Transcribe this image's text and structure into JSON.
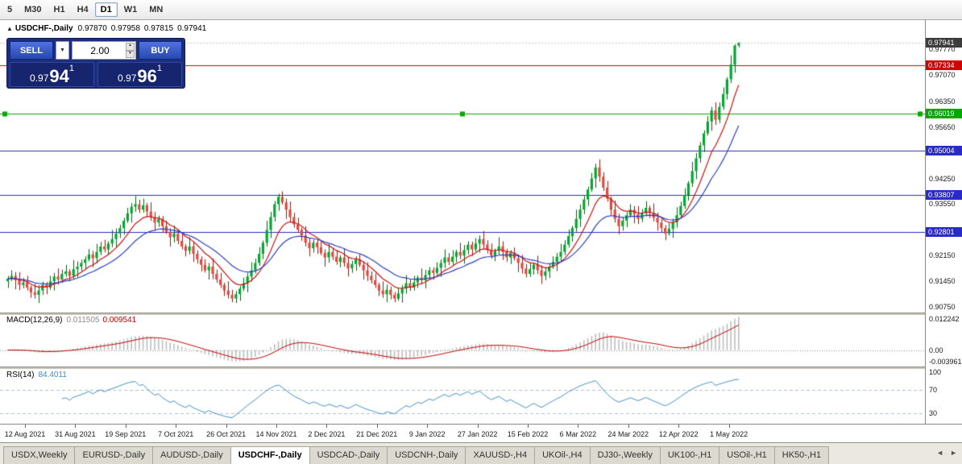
{
  "toolbar": {
    "timeframes": [
      "5",
      "M30",
      "H1",
      "H4",
      "D1",
      "W1",
      "MN"
    ],
    "active_timeframe": "D1"
  },
  "icons": {
    "collapse": "▲",
    "dropdown": "▼",
    "spin_up": "▲",
    "spin_down": "▼",
    "tab_prev": "◄",
    "tab_next": "►"
  },
  "chart_header": {
    "symbol": "USDCHF-,Daily",
    "open": "0.97870",
    "high": "0.97958",
    "low": "0.97815",
    "close": "0.97941"
  },
  "trade_panel": {
    "sell_label": "SELL",
    "buy_label": "BUY",
    "volume": "2.00",
    "sell_price": {
      "prefix": "0.97",
      "big": "94",
      "sup": "1"
    },
    "buy_price": {
      "prefix": "0.97",
      "big": "96",
      "sup": "1"
    }
  },
  "price_axis": {
    "labels": [
      {
        "text": "0.97770",
        "value": 0.9777
      },
      {
        "text": "0.97070",
        "value": 0.9707
      },
      {
        "text": "0.96350",
        "value": 0.9635
      },
      {
        "text": "0.95650",
        "value": 0.9565
      },
      {
        "text": "0.94250",
        "value": 0.9425
      },
      {
        "text": "0.93550",
        "value": 0.9355
      },
      {
        "text": "0.92150",
        "value": 0.9215
      },
      {
        "text": "0.91450",
        "value": 0.9145
      },
      {
        "text": "0.90750",
        "value": 0.9075
      }
    ],
    "tags": [
      {
        "text": "0.97941",
        "value": 0.97941,
        "bg": "#3c3c3c"
      },
      {
        "text": "0.97334",
        "value": 0.97334,
        "bg": "#d60000"
      },
      {
        "text": "0.96019",
        "value": 0.96019,
        "bg": "#00a800"
      },
      {
        "text": "0.95004",
        "value": 0.95004,
        "bg": "#2a2ac8"
      },
      {
        "text": "0.93807",
        "value": 0.93807,
        "bg": "#2a2ac8"
      },
      {
        "text": "0.92801",
        "value": 0.92801,
        "bg": "#2a2ac8"
      }
    ]
  },
  "macd_panel": {
    "title": "MACD(12,26,9)",
    "value_main": "0.011505",
    "value_signal": "0.009541",
    "axis_labels": [
      "0.012242",
      "0.00",
      "-0.003961"
    ],
    "histogram_color": "#bdbdbd",
    "signal_color": "#c00000",
    "params": {
      "fast": 12,
      "slow": 26,
      "signal": 9
    }
  },
  "rsi_panel": {
    "title": "RSI(14)",
    "value": "84.4011",
    "period": 14,
    "axis_labels": [
      "100",
      "70",
      "30"
    ],
    "levels": [
      70,
      30
    ],
    "line_color": "#3f8fc4"
  },
  "tab_bar": {
    "tabs": [
      "USDX,Weekly",
      "EURUSD-,Daily",
      "AUDUSD-,Daily",
      "USDCHF-,Daily",
      "USDCAD-,Daily",
      "USDCNH-,Daily",
      "XAUUSD-,H4",
      "UKOil-,H4",
      "DJ30-,Weekly",
      "UK100-,H1",
      "USOil-,H1",
      "HK50-,H1"
    ],
    "active": "USDCHF-,Daily"
  },
  "chart_data": {
    "type": "candlestick",
    "symbol": "USDCHF",
    "timeframe": "Daily",
    "ylim": [
      0.906,
      0.9856
    ],
    "current_price": 0.97941,
    "up_color": "#00a830",
    "down_color": "#e2483c",
    "x_labels": [
      "12 Aug 2021",
      "31 Aug 2021",
      "19 Sep 2021",
      "7 Oct 2021",
      "26 Oct 2021",
      "14 Nov 2021",
      "2 Dec 2021",
      "21 Dec 2021",
      "9 Jan 2022",
      "27 Jan 2022",
      "15 Feb 2022",
      "6 Mar 2022",
      "24 Mar 2022",
      "12 Apr 2022",
      "1 May 2022"
    ],
    "hlines": [
      {
        "price": 0.97334,
        "color": "#d60000"
      },
      {
        "price": 0.96019,
        "color": "#00a800",
        "selected": true
      },
      {
        "price": 0.95004,
        "color": "#2a2ac8"
      },
      {
        "price": 0.93807,
        "color": "#2a2ac8"
      },
      {
        "price": 0.92801,
        "color": "#2a2ac8"
      }
    ],
    "moving_averages": [
      {
        "period": 9,
        "type": "ema",
        "color": "#cc1111"
      },
      {
        "period": 20,
        "type": "ema",
        "color": "#2b3fc4"
      }
    ],
    "candles": [
      [
        0.9145,
        0.916,
        0.9127,
        0.9152
      ],
      [
        0.9152,
        0.9175,
        0.9146,
        0.916
      ],
      [
        0.916,
        0.917,
        0.9123,
        0.9148
      ],
      [
        0.9148,
        0.917,
        0.9121,
        0.9135
      ],
      [
        0.9135,
        0.9154,
        0.9126,
        0.9142
      ],
      [
        0.9142,
        0.916,
        0.912,
        0.9128
      ],
      [
        0.9128,
        0.9134,
        0.91,
        0.9115
      ],
      [
        0.9115,
        0.914,
        0.9098,
        0.9108
      ],
      [
        0.9108,
        0.9134,
        0.9086,
        0.912
      ],
      [
        0.912,
        0.9144,
        0.9108,
        0.9135
      ],
      [
        0.9135,
        0.9143,
        0.911,
        0.9128
      ],
      [
        0.9128,
        0.916,
        0.9122,
        0.9145
      ],
      [
        0.9145,
        0.9168,
        0.912,
        0.9158
      ],
      [
        0.9158,
        0.918,
        0.9136,
        0.915
      ],
      [
        0.915,
        0.9177,
        0.9141,
        0.9165
      ],
      [
        0.9165,
        0.919,
        0.9157,
        0.9172
      ],
      [
        0.9172,
        0.9178,
        0.9145,
        0.916
      ],
      [
        0.916,
        0.9203,
        0.915,
        0.9178
      ],
      [
        0.9178,
        0.9199,
        0.9156,
        0.9185
      ],
      [
        0.9185,
        0.9204,
        0.9173,
        0.9195
      ],
      [
        0.9195,
        0.9213,
        0.9177,
        0.9205
      ],
      [
        0.9205,
        0.9233,
        0.9199,
        0.9218
      ],
      [
        0.9218,
        0.9228,
        0.9183,
        0.9208
      ],
      [
        0.9208,
        0.9247,
        0.9194,
        0.9225
      ],
      [
        0.9225,
        0.9252,
        0.9216,
        0.924
      ],
      [
        0.924,
        0.9258,
        0.9224,
        0.9232
      ],
      [
        0.9232,
        0.9254,
        0.9217,
        0.9248
      ],
      [
        0.9248,
        0.9285,
        0.9238,
        0.926
      ],
      [
        0.926,
        0.9289,
        0.9238,
        0.9275
      ],
      [
        0.9275,
        0.9299,
        0.9263,
        0.929
      ],
      [
        0.929,
        0.9318,
        0.9272,
        0.931
      ],
      [
        0.931,
        0.9345,
        0.9304,
        0.933
      ],
      [
        0.933,
        0.9358,
        0.9305,
        0.9348
      ],
      [
        0.9348,
        0.9377,
        0.9334,
        0.9355
      ],
      [
        0.9355,
        0.9367,
        0.9331,
        0.934
      ],
      [
        0.934,
        0.937,
        0.9332,
        0.9352
      ],
      [
        0.9352,
        0.9358,
        0.932,
        0.9335
      ],
      [
        0.9335,
        0.936,
        0.931,
        0.932
      ],
      [
        0.932,
        0.9334,
        0.9283,
        0.9305
      ],
      [
        0.9305,
        0.9324,
        0.9293,
        0.9315
      ],
      [
        0.9315,
        0.9323,
        0.9277,
        0.9295
      ],
      [
        0.9295,
        0.931,
        0.9274,
        0.928
      ],
      [
        0.928,
        0.929,
        0.924,
        0.9265
      ],
      [
        0.9265,
        0.9297,
        0.9251,
        0.9275
      ],
      [
        0.9275,
        0.9287,
        0.9246,
        0.9255
      ],
      [
        0.9255,
        0.9273,
        0.9232,
        0.924
      ],
      [
        0.924,
        0.9246,
        0.9213,
        0.9228
      ],
      [
        0.9228,
        0.9265,
        0.9218,
        0.924
      ],
      [
        0.924,
        0.9254,
        0.9198,
        0.922
      ],
      [
        0.922,
        0.9229,
        0.9193,
        0.9205
      ],
      [
        0.9205,
        0.9213,
        0.9172,
        0.919
      ],
      [
        0.919,
        0.9205,
        0.9169,
        0.9175
      ],
      [
        0.9175,
        0.9195,
        0.915,
        0.9185
      ],
      [
        0.9185,
        0.9207,
        0.9151,
        0.9165
      ],
      [
        0.9165,
        0.9177,
        0.9141,
        0.915
      ],
      [
        0.915,
        0.9168,
        0.9127,
        0.9135
      ],
      [
        0.9135,
        0.9141,
        0.9105,
        0.912
      ],
      [
        0.912,
        0.9145,
        0.9098,
        0.9108
      ],
      [
        0.9108,
        0.9122,
        0.9088,
        0.9098
      ],
      [
        0.9098,
        0.9119,
        0.9086,
        0.911
      ],
      [
        0.911,
        0.9133,
        0.9092,
        0.9125
      ],
      [
        0.9125,
        0.9155,
        0.9119,
        0.914
      ],
      [
        0.914,
        0.9168,
        0.9115,
        0.9158
      ],
      [
        0.9158,
        0.9197,
        0.9144,
        0.9175
      ],
      [
        0.9175,
        0.9207,
        0.9166,
        0.9195
      ],
      [
        0.9195,
        0.9238,
        0.9187,
        0.922
      ],
      [
        0.922,
        0.9256,
        0.9205,
        0.925
      ],
      [
        0.925,
        0.931,
        0.924,
        0.9285
      ],
      [
        0.9285,
        0.9334,
        0.9263,
        0.932
      ],
      [
        0.932,
        0.9364,
        0.9308,
        0.9355
      ],
      [
        0.9355,
        0.9383,
        0.9337,
        0.9375
      ],
      [
        0.9375,
        0.939,
        0.9354,
        0.936
      ],
      [
        0.936,
        0.937,
        0.9315,
        0.934
      ],
      [
        0.934,
        0.9362,
        0.9306,
        0.932
      ],
      [
        0.932,
        0.9332,
        0.9291,
        0.93
      ],
      [
        0.93,
        0.9318,
        0.9277,
        0.9285
      ],
      [
        0.9285,
        0.9291,
        0.9255,
        0.927
      ],
      [
        0.927,
        0.9295,
        0.924,
        0.925
      ],
      [
        0.925,
        0.9264,
        0.9213,
        0.9235
      ],
      [
        0.9235,
        0.9259,
        0.9223,
        0.925
      ],
      [
        0.925,
        0.9258,
        0.922,
        0.9238
      ],
      [
        0.9238,
        0.9253,
        0.9216,
        0.9222
      ],
      [
        0.9222,
        0.9232,
        0.9185,
        0.921
      ],
      [
        0.921,
        0.9247,
        0.9196,
        0.9225
      ],
      [
        0.9225,
        0.9237,
        0.9203,
        0.9212
      ],
      [
        0.9212,
        0.923,
        0.919,
        0.9198
      ],
      [
        0.9198,
        0.9216,
        0.9183,
        0.921
      ],
      [
        0.921,
        0.9235,
        0.9185,
        0.9195
      ],
      [
        0.9195,
        0.9209,
        0.9158,
        0.918
      ],
      [
        0.918,
        0.9201,
        0.9168,
        0.9192
      ],
      [
        0.9192,
        0.9213,
        0.9174,
        0.9205
      ],
      [
        0.9205,
        0.922,
        0.9184,
        0.919
      ],
      [
        0.919,
        0.92,
        0.915,
        0.9175
      ],
      [
        0.9175,
        0.9197,
        0.9146,
        0.916
      ],
      [
        0.916,
        0.9172,
        0.9139,
        0.9148
      ],
      [
        0.9148,
        0.9166,
        0.9127,
        0.9135
      ],
      [
        0.9135,
        0.9141,
        0.9105,
        0.912
      ],
      [
        0.912,
        0.9145,
        0.91,
        0.911
      ],
      [
        0.911,
        0.9136,
        0.9088,
        0.9122
      ],
      [
        0.9122,
        0.9131,
        0.9096,
        0.9108
      ],
      [
        0.9108,
        0.9116,
        0.9088,
        0.9098
      ],
      [
        0.9098,
        0.9127,
        0.9092,
        0.9112
      ],
      [
        0.9112,
        0.9135,
        0.9087,
        0.9125
      ],
      [
        0.9125,
        0.9162,
        0.9111,
        0.914
      ],
      [
        0.914,
        0.9152,
        0.9119,
        0.9128
      ],
      [
        0.9128,
        0.916,
        0.912,
        0.9142
      ],
      [
        0.9142,
        0.9161,
        0.9127,
        0.9155
      ],
      [
        0.9155,
        0.918,
        0.9138,
        0.9148
      ],
      [
        0.9148,
        0.9176,
        0.9126,
        0.9162
      ],
      [
        0.9162,
        0.9184,
        0.915,
        0.9175
      ],
      [
        0.9175,
        0.9183,
        0.915,
        0.9168
      ],
      [
        0.9168,
        0.9197,
        0.9162,
        0.9182
      ],
      [
        0.9182,
        0.9205,
        0.9157,
        0.9195
      ],
      [
        0.9195,
        0.9232,
        0.9181,
        0.921
      ],
      [
        0.921,
        0.9222,
        0.9189,
        0.9198
      ],
      [
        0.9198,
        0.923,
        0.919,
        0.9212
      ],
      [
        0.9212,
        0.9231,
        0.9197,
        0.9225
      ],
      [
        0.9225,
        0.925,
        0.9205,
        0.9215
      ],
      [
        0.9215,
        0.9244,
        0.9193,
        0.923
      ],
      [
        0.923,
        0.9254,
        0.9218,
        0.9245
      ],
      [
        0.9245,
        0.9253,
        0.9214,
        0.9232
      ],
      [
        0.9232,
        0.9263,
        0.9226,
        0.9248
      ],
      [
        0.9248,
        0.927,
        0.9223,
        0.926
      ],
      [
        0.926,
        0.9282,
        0.9231,
        0.9245
      ],
      [
        0.9245,
        0.9257,
        0.9221,
        0.923
      ],
      [
        0.923,
        0.9248,
        0.9207,
        0.9215
      ],
      [
        0.9215,
        0.9234,
        0.92,
        0.9228
      ],
      [
        0.9228,
        0.9265,
        0.9218,
        0.924
      ],
      [
        0.924,
        0.9254,
        0.9203,
        0.9225
      ],
      [
        0.9225,
        0.9234,
        0.9198,
        0.921
      ],
      [
        0.921,
        0.923,
        0.9192,
        0.9222
      ],
      [
        0.9222,
        0.9237,
        0.9202,
        0.9208
      ],
      [
        0.9208,
        0.9218,
        0.917,
        0.9195
      ],
      [
        0.9195,
        0.9217,
        0.9166,
        0.918
      ],
      [
        0.918,
        0.9192,
        0.9156,
        0.9165
      ],
      [
        0.9165,
        0.9196,
        0.9157,
        0.9178
      ],
      [
        0.9178,
        0.9196,
        0.9163,
        0.919
      ],
      [
        0.919,
        0.9215,
        0.9165,
        0.9175
      ],
      [
        0.9175,
        0.9189,
        0.9138,
        0.916
      ],
      [
        0.916,
        0.9181,
        0.9148,
        0.9172
      ],
      [
        0.9172,
        0.9193,
        0.9154,
        0.9185
      ],
      [
        0.9185,
        0.9213,
        0.9179,
        0.9198
      ],
      [
        0.9198,
        0.9222,
        0.9173,
        0.9212
      ],
      [
        0.9212,
        0.9247,
        0.9198,
        0.9225
      ],
      [
        0.9225,
        0.9257,
        0.9216,
        0.9245
      ],
      [
        0.9245,
        0.9286,
        0.9237,
        0.9268
      ],
      [
        0.9268,
        0.9296,
        0.9253,
        0.929
      ],
      [
        0.929,
        0.934,
        0.928,
        0.9315
      ],
      [
        0.9315,
        0.9354,
        0.9293,
        0.934
      ],
      [
        0.934,
        0.9377,
        0.9328,
        0.9368
      ],
      [
        0.9368,
        0.9403,
        0.935,
        0.9395
      ],
      [
        0.9395,
        0.944,
        0.9389,
        0.9425
      ],
      [
        0.9425,
        0.9465,
        0.94,
        0.9455
      ],
      [
        0.9455,
        0.9477,
        0.9416,
        0.943
      ],
      [
        0.943,
        0.9442,
        0.9391,
        0.94
      ],
      [
        0.94,
        0.9418,
        0.9362,
        0.937
      ],
      [
        0.937,
        0.9376,
        0.9325,
        0.934
      ],
      [
        0.934,
        0.9365,
        0.9305,
        0.9315
      ],
      [
        0.9315,
        0.9329,
        0.9273,
        0.9295
      ],
      [
        0.9295,
        0.9319,
        0.9283,
        0.931
      ],
      [
        0.931,
        0.9333,
        0.9292,
        0.9325
      ],
      [
        0.9325,
        0.9355,
        0.9319,
        0.934
      ],
      [
        0.934,
        0.935,
        0.9303,
        0.9328
      ],
      [
        0.9328,
        0.935,
        0.9301,
        0.9315
      ],
      [
        0.9315,
        0.9342,
        0.9306,
        0.933
      ],
      [
        0.933,
        0.9363,
        0.9322,
        0.9345
      ],
      [
        0.9345,
        0.9351,
        0.9317,
        0.9332
      ],
      [
        0.9332,
        0.9357,
        0.9308,
        0.9318
      ],
      [
        0.9318,
        0.9332,
        0.9283,
        0.9305
      ],
      [
        0.9305,
        0.9314,
        0.9278,
        0.929
      ],
      [
        0.929,
        0.9298,
        0.9257,
        0.9275
      ],
      [
        0.9275,
        0.9303,
        0.9269,
        0.9288
      ],
      [
        0.9288,
        0.9315,
        0.9263,
        0.9305
      ],
      [
        0.9305,
        0.9347,
        0.9291,
        0.9325
      ],
      [
        0.9325,
        0.9362,
        0.9316,
        0.935
      ],
      [
        0.935,
        0.9398,
        0.9342,
        0.938
      ],
      [
        0.938,
        0.9418,
        0.9365,
        0.9412
      ],
      [
        0.9412,
        0.947,
        0.9402,
        0.9445
      ],
      [
        0.9445,
        0.9494,
        0.9423,
        0.948
      ],
      [
        0.948,
        0.9524,
        0.9468,
        0.9515
      ],
      [
        0.9515,
        0.9556,
        0.9497,
        0.9548
      ],
      [
        0.9548,
        0.9595,
        0.9542,
        0.958
      ],
      [
        0.958,
        0.962,
        0.9555,
        0.961
      ],
      [
        0.961,
        0.9632,
        0.9571,
        0.9585
      ],
      [
        0.9585,
        0.9632,
        0.9576,
        0.962
      ],
      [
        0.962,
        0.9673,
        0.9612,
        0.9655
      ],
      [
        0.9655,
        0.9701,
        0.964,
        0.9695
      ],
      [
        0.9695,
        0.976,
        0.9685,
        0.9735
      ],
      [
        0.9735,
        0.979,
        0.9713,
        0.9787
      ],
      [
        0.9787,
        0.97958,
        0.97815,
        0.97941
      ]
    ]
  }
}
